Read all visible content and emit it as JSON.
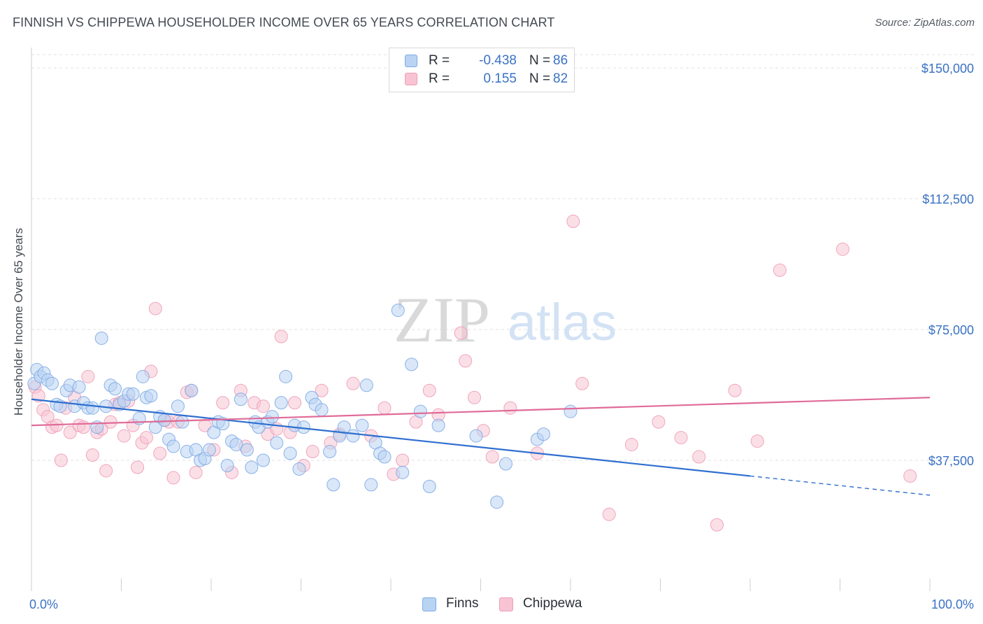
{
  "title": "FINNISH VS CHIPPEWA HOUSEHOLDER INCOME OVER 65 YEARS CORRELATION CHART",
  "source": "Source: ZipAtlas.com",
  "watermark": {
    "zip": "ZIP",
    "atlas": "atlas"
  },
  "legend": {
    "r_label": "R =",
    "n_label": "N =",
    "finns": {
      "r": "-0.438",
      "n": "86"
    },
    "chippewa": {
      "r": "0.155",
      "n": "82"
    }
  },
  "colors": {
    "finns_fill": "#b9d3f3",
    "finns_stroke": "#7eaae6",
    "finns_line": "#2f6fd0",
    "chippewa_fill": "#f8c4d4",
    "chippewa_stroke": "#ee9db6",
    "chippewa_line": "#e06b98",
    "axis_text": "#3a72c4",
    "grid": "#e2e2e2"
  },
  "chart_data": {
    "type": "scatter",
    "title": "FINNISH VS CHIPPEWA HOUSEHOLDER INCOME OVER 65 YEARS CORRELATION CHART",
    "xlabel": "",
    "ylabel": "Householder Income Over 65 years",
    "x_unit": "percent",
    "xlim": [
      0,
      100
    ],
    "ylim": [
      0,
      155000
    ],
    "x_tick_labels": [
      "0.0%",
      "100.0%"
    ],
    "y_ticks": [
      37500,
      75000,
      112500,
      150000
    ],
    "y_tick_labels": [
      "$37,500",
      "$75,000",
      "$112,500",
      "$150,000"
    ],
    "grid": true,
    "legend_position": "top-center",
    "series": [
      {
        "name": "Finns",
        "r": -0.438,
        "n": 86,
        "trend": {
          "x0": 0,
          "y0": 55000,
          "x1": 80,
          "y1": 33000,
          "dashed_to_x": 100,
          "dashed_to_y": 27500
        },
        "points": [
          [
            0.3,
            59500
          ],
          [
            0.6,
            63500
          ],
          [
            1.0,
            61500
          ],
          [
            1.4,
            62500
          ],
          [
            1.8,
            60500
          ],
          [
            2.3,
            59500
          ],
          [
            2.8,
            53500
          ],
          [
            3.2,
            53000
          ],
          [
            3.9,
            57500
          ],
          [
            4.3,
            59000
          ],
          [
            4.8,
            53000
          ],
          [
            5.3,
            58500
          ],
          [
            5.8,
            54000
          ],
          [
            6.3,
            52500
          ],
          [
            6.8,
            52500
          ],
          [
            7.3,
            47000
          ],
          [
            7.8,
            72500
          ],
          [
            8.3,
            53000
          ],
          [
            8.8,
            59000
          ],
          [
            9.3,
            58000
          ],
          [
            9.8,
            53500
          ],
          [
            10.3,
            54500
          ],
          [
            10.8,
            56500
          ],
          [
            11.3,
            56500
          ],
          [
            12.0,
            49500
          ],
          [
            12.4,
            61500
          ],
          [
            12.8,
            55500
          ],
          [
            13.3,
            56000
          ],
          [
            13.8,
            47000
          ],
          [
            14.3,
            50000
          ],
          [
            14.8,
            49000
          ],
          [
            15.3,
            43500
          ],
          [
            15.8,
            41500
          ],
          [
            16.3,
            53000
          ],
          [
            16.8,
            48500
          ],
          [
            17.3,
            40000
          ],
          [
            17.8,
            57500
          ],
          [
            18.3,
            40500
          ],
          [
            18.8,
            37500
          ],
          [
            19.3,
            38000
          ],
          [
            19.8,
            40500
          ],
          [
            20.3,
            45500
          ],
          [
            20.8,
            48500
          ],
          [
            21.3,
            48000
          ],
          [
            21.8,
            36000
          ],
          [
            22.3,
            43000
          ],
          [
            22.8,
            42000
          ],
          [
            23.3,
            55000
          ],
          [
            24.0,
            40500
          ],
          [
            24.5,
            35500
          ],
          [
            24.9,
            48500
          ],
          [
            25.3,
            47000
          ],
          [
            25.8,
            37500
          ],
          [
            26.3,
            48500
          ],
          [
            26.8,
            50000
          ],
          [
            27.3,
            42500
          ],
          [
            27.8,
            54000
          ],
          [
            28.3,
            61500
          ],
          [
            28.8,
            39500
          ],
          [
            29.3,
            47500
          ],
          [
            29.8,
            35000
          ],
          [
            30.3,
            47000
          ],
          [
            31.2,
            55500
          ],
          [
            31.6,
            53500
          ],
          [
            32.3,
            52000
          ],
          [
            33.2,
            40000
          ],
          [
            33.6,
            30500
          ],
          [
            34.3,
            44500
          ],
          [
            34.8,
            47000
          ],
          [
            35.8,
            44500
          ],
          [
            36.8,
            47500
          ],
          [
            37.3,
            59000
          ],
          [
            37.8,
            30500
          ],
          [
            38.3,
            42500
          ],
          [
            38.8,
            39500
          ],
          [
            39.3,
            38500
          ],
          [
            40.8,
            80500
          ],
          [
            41.3,
            34000
          ],
          [
            42.3,
            65000
          ],
          [
            43.3,
            51500
          ],
          [
            44.3,
            30000
          ],
          [
            45.3,
            47500
          ],
          [
            49.5,
            44500
          ],
          [
            51.8,
            25500
          ],
          [
            52.8,
            36500
          ],
          [
            56.3,
            43500
          ],
          [
            57.0,
            45000
          ],
          [
            60.0,
            51500
          ]
        ]
      },
      {
        "name": "Chippewa",
        "r": 0.155,
        "n": 82,
        "trend": {
          "x0": 0,
          "y0": 47500,
          "x1": 100,
          "y1": 55500
        },
        "points": [
          [
            0.4,
            58500
          ],
          [
            0.8,
            56000
          ],
          [
            1.3,
            52000
          ],
          [
            1.8,
            50000
          ],
          [
            2.3,
            47000
          ],
          [
            2.8,
            47500
          ],
          [
            3.3,
            37500
          ],
          [
            3.8,
            52500
          ],
          [
            4.3,
            45500
          ],
          [
            4.8,
            55500
          ],
          [
            5.3,
            47500
          ],
          [
            5.8,
            47000
          ],
          [
            6.3,
            61500
          ],
          [
            6.8,
            39000
          ],
          [
            7.3,
            45500
          ],
          [
            7.8,
            46500
          ],
          [
            8.3,
            34500
          ],
          [
            8.8,
            48500
          ],
          [
            9.3,
            53500
          ],
          [
            9.8,
            54000
          ],
          [
            10.3,
            44500
          ],
          [
            10.8,
            54500
          ],
          [
            11.3,
            47500
          ],
          [
            11.8,
            35500
          ],
          [
            12.3,
            42500
          ],
          [
            12.8,
            44000
          ],
          [
            13.3,
            63000
          ],
          [
            13.8,
            81000
          ],
          [
            14.3,
            39500
          ],
          [
            14.8,
            49000
          ],
          [
            15.3,
            48500
          ],
          [
            15.8,
            32500
          ],
          [
            16.3,
            48500
          ],
          [
            17.3,
            57000
          ],
          [
            17.8,
            57500
          ],
          [
            18.3,
            34000
          ],
          [
            19.3,
            47500
          ],
          [
            20.3,
            40500
          ],
          [
            21.3,
            54000
          ],
          [
            22.3,
            34000
          ],
          [
            23.3,
            57500
          ],
          [
            23.8,
            41500
          ],
          [
            24.8,
            54000
          ],
          [
            25.8,
            53000
          ],
          [
            26.3,
            45000
          ],
          [
            27.3,
            46500
          ],
          [
            27.8,
            73000
          ],
          [
            28.8,
            45500
          ],
          [
            29.3,
            54000
          ],
          [
            30.3,
            36000
          ],
          [
            31.3,
            40000
          ],
          [
            32.3,
            57500
          ],
          [
            33.3,
            42500
          ],
          [
            34.3,
            45000
          ],
          [
            35.8,
            59500
          ],
          [
            37.8,
            44500
          ],
          [
            39.3,
            52500
          ],
          [
            40.3,
            33500
          ],
          [
            41.3,
            37500
          ],
          [
            42.8,
            48500
          ],
          [
            44.3,
            57500
          ],
          [
            45.3,
            50500
          ],
          [
            47.8,
            74000
          ],
          [
            48.3,
            66000
          ],
          [
            49.3,
            55500
          ],
          [
            50.3,
            46000
          ],
          [
            51.3,
            38500
          ],
          [
            53.3,
            52500
          ],
          [
            56.3,
            39500
          ],
          [
            60.3,
            106000
          ],
          [
            61.3,
            59500
          ],
          [
            64.3,
            22000
          ],
          [
            66.8,
            42000
          ],
          [
            69.8,
            48500
          ],
          [
            72.3,
            44000
          ],
          [
            74.3,
            38500
          ],
          [
            76.3,
            19000
          ],
          [
            78.3,
            57500
          ],
          [
            80.8,
            43000
          ],
          [
            83.3,
            92000
          ],
          [
            90.3,
            98000
          ],
          [
            97.8,
            33000
          ]
        ]
      }
    ]
  }
}
